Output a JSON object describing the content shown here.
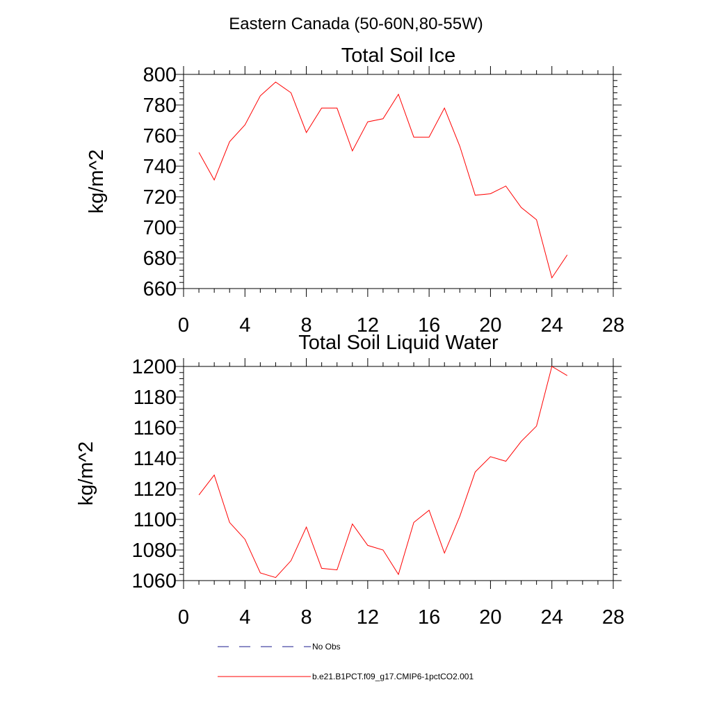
{
  "figure": {
    "title": "Eastern Canada (50-60N,80-55W)"
  },
  "colors": {
    "model_line": "#ff0000",
    "obs_line": "#1a1a8c",
    "axis": "#000000"
  },
  "chart_data": [
    {
      "type": "line",
      "title": "Total Soil Ice",
      "xlabel": "",
      "ylabel": "kg/m^2",
      "xlim": [
        0,
        28
      ],
      "ylim": [
        660,
        800
      ],
      "xticks": [
        0,
        4,
        8,
        12,
        16,
        20,
        24,
        28
      ],
      "yticks": [
        660,
        680,
        700,
        720,
        740,
        760,
        780,
        800
      ],
      "grid": false,
      "series": [
        {
          "name": "b.e21.B1PCT.f09_g17.CMIP6-1pctCO2.001",
          "x": [
            1,
            2,
            3,
            4,
            5,
            6,
            7,
            8,
            9,
            10,
            11,
            12,
            13,
            14,
            15,
            16,
            17,
            18,
            19,
            20,
            21,
            22,
            23,
            24,
            25
          ],
          "values": [
            749,
            731,
            756,
            767,
            786,
            795,
            788,
            762,
            778,
            778,
            750,
            769,
            771,
            787,
            759,
            759,
            778,
            753,
            721,
            722,
            727,
            713,
            705,
            667,
            682
          ]
        }
      ]
    },
    {
      "type": "line",
      "title": "Total Soil Liquid Water",
      "xlabel": "",
      "ylabel": "kg/m^2",
      "xlim": [
        0,
        28
      ],
      "ylim": [
        1060,
        1200
      ],
      "xticks": [
        0,
        4,
        8,
        12,
        16,
        20,
        24,
        28
      ],
      "yticks": [
        1060,
        1080,
        1100,
        1120,
        1140,
        1160,
        1180,
        1200
      ],
      "grid": false,
      "series": [
        {
          "name": "b.e21.B1PCT.f09_g17.CMIP6-1pctCO2.001",
          "x": [
            1,
            2,
            3,
            4,
            5,
            6,
            7,
            8,
            9,
            10,
            11,
            12,
            13,
            14,
            15,
            16,
            17,
            18,
            19,
            20,
            21,
            22,
            23,
            24,
            25
          ],
          "values": [
            1116,
            1129,
            1098,
            1087,
            1065,
            1062,
            1073,
            1095,
            1068,
            1067,
            1097,
            1083,
            1080,
            1064,
            1098,
            1106,
            1078,
            1102,
            1131,
            1141,
            1138,
            1151,
            1161,
            1200,
            1194
          ]
        }
      ]
    }
  ],
  "legend": {
    "items": [
      {
        "label": "No Obs",
        "style": "dashed"
      },
      {
        "label": "b.e21.B1PCT.f09_g17.CMIP6-1pctCO2.001",
        "style": "solid"
      }
    ]
  }
}
